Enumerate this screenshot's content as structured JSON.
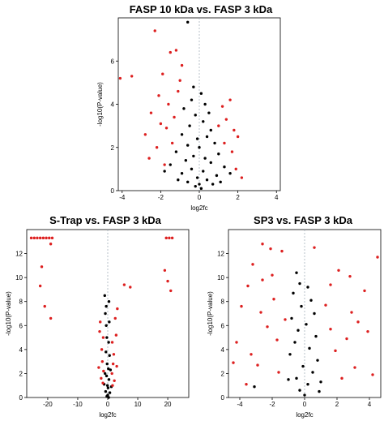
{
  "chart_data": [
    {
      "type": "scatter",
      "title": "FASP 10 kDa vs. FASP 3 kDa",
      "xlabel": "log2fc",
      "ylabel": "-log10(P-value)",
      "xlim": [
        -4.2,
        4.2
      ],
      "ylim": [
        0,
        8
      ],
      "xticks": [
        -4,
        -2,
        0,
        2,
        4
      ],
      "yticks": [
        0,
        2,
        4,
        6
      ],
      "guide_line_x": 0,
      "colors": {
        "significant": "#dd2020",
        "not_significant": "#000000"
      },
      "series": [
        {
          "color": "#000000",
          "points": [
            [
              -0.6,
              7.8
            ],
            [
              -0.3,
              4.8
            ],
            [
              0.1,
              4.5
            ],
            [
              -0.4,
              4.2
            ],
            [
              0.3,
              4.0
            ],
            [
              -0.8,
              3.8
            ],
            [
              0.5,
              3.6
            ],
            [
              -0.2,
              3.5
            ],
            [
              0.2,
              3.2
            ],
            [
              -0.5,
              3.0
            ],
            [
              0.6,
              2.8
            ],
            [
              -0.9,
              2.6
            ],
            [
              0.4,
              2.5
            ],
            [
              -0.1,
              2.4
            ],
            [
              0.8,
              2.2
            ],
            [
              -0.6,
              2.1
            ],
            [
              0.0,
              2.0
            ],
            [
              -1.2,
              1.8
            ],
            [
              1.0,
              1.7
            ],
            [
              -0.3,
              1.6
            ],
            [
              0.3,
              1.5
            ],
            [
              -0.7,
              1.4
            ],
            [
              0.6,
              1.3
            ],
            [
              -1.5,
              1.2
            ],
            [
              1.3,
              1.1
            ],
            [
              -0.4,
              1.0
            ],
            [
              0.2,
              0.9
            ],
            [
              -0.9,
              0.8
            ],
            [
              0.9,
              0.7
            ],
            [
              -0.1,
              0.6
            ],
            [
              0.4,
              0.5
            ],
            [
              -0.6,
              0.4
            ],
            [
              0.7,
              0.3
            ],
            [
              -0.2,
              0.2
            ],
            [
              0.1,
              0.1
            ],
            [
              -1.8,
              0.9
            ],
            [
              1.6,
              0.8
            ],
            [
              -1.1,
              0.5
            ],
            [
              1.1,
              0.4
            ],
            [
              0.0,
              0.3
            ]
          ]
        },
        {
          "color": "#dd2020",
          "points": [
            [
              -2.3,
              7.4
            ],
            [
              -4.1,
              5.2
            ],
            [
              -3.5,
              5.3
            ],
            [
              -1.5,
              6.4
            ],
            [
              -1.2,
              6.5
            ],
            [
              -1.9,
              5.4
            ],
            [
              -1.0,
              5.1
            ],
            [
              -2.1,
              4.4
            ],
            [
              -1.6,
              4.0
            ],
            [
              -2.5,
              3.6
            ],
            [
              -1.3,
              3.4
            ],
            [
              -2.8,
              2.6
            ],
            [
              -1.7,
              2.9
            ],
            [
              -2.0,
              3.1
            ],
            [
              1.2,
              3.9
            ],
            [
              1.6,
              4.2
            ],
            [
              1.4,
              3.3
            ],
            [
              2.0,
              2.5
            ],
            [
              1.8,
              2.8
            ],
            [
              1.3,
              2.2
            ],
            [
              -1.4,
              2.2
            ],
            [
              -2.2,
              2.0
            ],
            [
              1.0,
              3.0
            ],
            [
              -1.1,
              4.6
            ],
            [
              -0.9,
              5.8
            ],
            [
              1.7,
              1.8
            ],
            [
              -2.6,
              1.5
            ],
            [
              1.9,
              1.0
            ],
            [
              -1.8,
              1.2
            ],
            [
              2.2,
              0.6
            ]
          ]
        }
      ]
    },
    {
      "type": "scatter",
      "title": "S-Trap vs. FASP 3 kDa",
      "xlabel": "log2fc",
      "ylabel": "-log10(P-value)",
      "xlim": [
        -27,
        27
      ],
      "ylim": [
        0,
        14
      ],
      "xticks": [
        -20,
        -10,
        0,
        10,
        20
      ],
      "yticks": [
        0,
        2,
        4,
        6,
        8,
        10,
        12
      ],
      "guide_line_x": 0,
      "colors": {
        "significant": "#dd2020",
        "not_significant": "#000000"
      },
      "series": [
        {
          "color": "#000000",
          "points": [
            [
              -1.0,
              8.5
            ],
            [
              -0.8,
              7.0
            ],
            [
              -0.5,
              6.0
            ],
            [
              0.5,
              6.3
            ],
            [
              -0.3,
              5.0
            ],
            [
              0.3,
              4.6
            ],
            [
              -0.6,
              3.8
            ],
            [
              0.6,
              3.5
            ],
            [
              -0.2,
              2.8
            ],
            [
              0.2,
              2.4
            ],
            [
              -0.4,
              1.8
            ],
            [
              0.4,
              1.5
            ],
            [
              -0.1,
              1.0
            ],
            [
              0.1,
              0.8
            ],
            [
              -0.7,
              0.5
            ],
            [
              0.7,
              0.4
            ],
            [
              0.0,
              0.2
            ],
            [
              -0.3,
              0.1
            ],
            [
              0.3,
              0.0
            ],
            [
              -1.2,
              1.1
            ],
            [
              1.2,
              0.9
            ],
            [
              -0.9,
              2.0
            ],
            [
              0.9,
              2.3
            ],
            [
              -0.5,
              7.6
            ],
            [
              0.4,
              8.0
            ]
          ]
        },
        {
          "color": "#dd2020",
          "points": [
            [
              -25.5,
              13.3
            ],
            [
              -24.5,
              13.3
            ],
            [
              -23.5,
              13.3
            ],
            [
              -22.5,
              13.3
            ],
            [
              -21.5,
              13.3
            ],
            [
              -20.5,
              13.3
            ],
            [
              -19.5,
              13.3
            ],
            [
              -19.0,
              12.8
            ],
            [
              -18.5,
              13.3
            ],
            [
              19.5,
              13.3
            ],
            [
              20.5,
              13.3
            ],
            [
              21.5,
              13.3
            ],
            [
              -22.0,
              10.9
            ],
            [
              -22.5,
              9.3
            ],
            [
              -21.0,
              7.6
            ],
            [
              -19.0,
              6.6
            ],
            [
              19.0,
              10.6
            ],
            [
              20.0,
              9.7
            ],
            [
              21.0,
              8.9
            ],
            [
              -2.5,
              6.3
            ],
            [
              2.5,
              6.6
            ],
            [
              3.2,
              7.4
            ],
            [
              5.5,
              9.4
            ],
            [
              7.5,
              9.2
            ],
            [
              -1.5,
              5.0
            ],
            [
              1.5,
              4.6
            ],
            [
              -2.0,
              4.0
            ],
            [
              2.0,
              3.6
            ],
            [
              -1.8,
              3.0
            ],
            [
              1.8,
              2.8
            ],
            [
              -1.4,
              2.2
            ],
            [
              1.4,
              2.0
            ],
            [
              -2.2,
              1.6
            ],
            [
              2.2,
              1.4
            ],
            [
              -1.6,
              1.2
            ],
            [
              1.6,
              1.0
            ],
            [
              -3.0,
              2.5
            ],
            [
              3.0,
              2.6
            ],
            [
              -2.7,
              5.5
            ],
            [
              2.8,
              5.2
            ]
          ]
        }
      ]
    },
    {
      "type": "scatter",
      "title": "SP3 vs. FASP 3 kDa",
      "xlabel": "log2fc",
      "ylabel": "-log10(P-value)",
      "xlim": [
        -4.7,
        4.7
      ],
      "ylim": [
        0,
        14
      ],
      "xticks": [
        -4,
        -2,
        0,
        2,
        4
      ],
      "yticks": [
        0,
        2,
        4,
        6,
        8,
        10,
        12
      ],
      "guide_line_x": 0,
      "colors": {
        "significant": "#dd2020",
        "not_significant": "#000000"
      },
      "series": [
        {
          "color": "#000000",
          "points": [
            [
              -0.5,
              10.4
            ],
            [
              -0.3,
              9.5
            ],
            [
              0.2,
              9.2
            ],
            [
              -0.7,
              8.7
            ],
            [
              0.4,
              8.1
            ],
            [
              -0.2,
              7.6
            ],
            [
              0.6,
              7.0
            ],
            [
              -0.8,
              6.6
            ],
            [
              0.1,
              6.1
            ],
            [
              -0.4,
              5.6
            ],
            [
              0.7,
              5.1
            ],
            [
              -0.6,
              4.6
            ],
            [
              0.3,
              4.1
            ],
            [
              -0.9,
              3.6
            ],
            [
              0.8,
              3.1
            ],
            [
              -0.1,
              2.6
            ],
            [
              0.5,
              2.1
            ],
            [
              -0.5,
              1.6
            ],
            [
              0.2,
              1.1
            ],
            [
              -0.3,
              0.6
            ],
            [
              0.0,
              0.2
            ],
            [
              -3.1,
              0.9
            ],
            [
              0.9,
              0.5
            ],
            [
              -1.0,
              1.5
            ],
            [
              1.0,
              1.3
            ]
          ]
        },
        {
          "color": "#dd2020",
          "points": [
            [
              -2.6,
              12.8
            ],
            [
              -2.1,
              12.4
            ],
            [
              0.6,
              12.5
            ],
            [
              -1.4,
              12.2
            ],
            [
              4.5,
              11.7
            ],
            [
              -3.2,
              11.1
            ],
            [
              2.1,
              10.6
            ],
            [
              -2.6,
              9.8
            ],
            [
              3.7,
              8.9
            ],
            [
              -3.9,
              7.6
            ],
            [
              2.9,
              7.1
            ],
            [
              -1.9,
              8.2
            ],
            [
              1.6,
              9.4
            ],
            [
              -2.3,
              5.9
            ],
            [
              3.3,
              6.3
            ],
            [
              -4.2,
              4.6
            ],
            [
              2.6,
              4.9
            ],
            [
              -3.3,
              3.6
            ],
            [
              1.9,
              3.9
            ],
            [
              -2.9,
              2.7
            ],
            [
              3.1,
              2.5
            ],
            [
              -1.6,
              2.1
            ],
            [
              2.3,
              1.6
            ],
            [
              -3.6,
              1.1
            ],
            [
              4.2,
              1.9
            ],
            [
              -1.2,
              6.5
            ],
            [
              1.3,
              7.7
            ],
            [
              -2.0,
              10.2
            ],
            [
              2.8,
              10.1
            ],
            [
              -3.5,
              9.3
            ],
            [
              3.9,
              5.5
            ],
            [
              -4.4,
              2.9
            ],
            [
              -1.7,
              4.8
            ],
            [
              1.6,
              5.7
            ],
            [
              -2.7,
              7.1
            ]
          ]
        }
      ]
    }
  ]
}
